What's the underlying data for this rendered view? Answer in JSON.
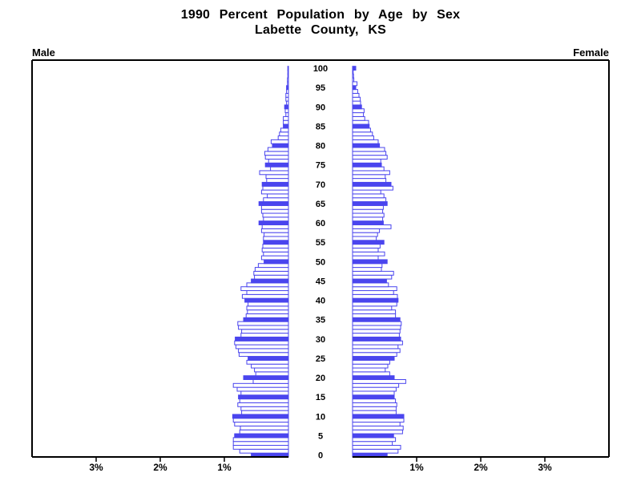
{
  "title": {
    "line1": "1990 Percent Population by Age by Sex",
    "line2": "Labette County, KS"
  },
  "panels": {
    "left_label": "Male",
    "right_label": "Female"
  },
  "chart_data": {
    "type": "bar",
    "subtype": "population-pyramid",
    "title": "1990 Percent Population by Age by Sex",
    "subtitle": "Labette County, KS",
    "orientation": "horizontal",
    "highlight_every": 5,
    "age_axis": {
      "min": 0,
      "max": 100,
      "tick_interval": 5,
      "tick_labels": [
        "0",
        "5",
        "10",
        "15",
        "20",
        "25",
        "30",
        "35",
        "40",
        "45",
        "50",
        "55",
        "60",
        "65",
        "70",
        "75",
        "80",
        "85",
        "90",
        "95",
        "100"
      ],
      "position": "center"
    },
    "x_axis": {
      "tick_labels": [
        "1%",
        "2%",
        "3%"
      ],
      "tick_values_percent": [
        1,
        2,
        3
      ],
      "max_percent": 4,
      "mirrored": true
    },
    "series": [
      {
        "name": "Male",
        "side": "left",
        "values_percent_by_age": [
          0.58,
          0.76,
          0.86,
          0.86,
          0.86,
          0.84,
          0.76,
          0.75,
          0.84,
          0.86,
          0.87,
          0.73,
          0.74,
          0.79,
          0.76,
          0.78,
          0.74,
          0.8,
          0.86,
          0.55,
          0.7,
          0.51,
          0.53,
          0.58,
          0.65,
          0.63,
          0.77,
          0.78,
          0.82,
          0.84,
          0.83,
          0.74,
          0.73,
          0.78,
          0.79,
          0.7,
          0.66,
          0.64,
          0.65,
          0.63,
          0.68,
          0.72,
          0.65,
          0.74,
          0.65,
          0.58,
          0.53,
          0.54,
          0.52,
          0.47,
          0.38,
          0.42,
          0.39,
          0.41,
          0.4,
          0.39,
          0.39,
          0.38,
          0.42,
          0.41,
          0.46,
          0.39,
          0.4,
          0.42,
          0.42,
          0.46,
          0.39,
          0.33,
          0.42,
          0.4,
          0.41,
          0.34,
          0.35,
          0.45,
          0.28,
          0.36,
          0.31,
          0.36,
          0.37,
          0.32,
          0.25,
          0.27,
          0.16,
          0.14,
          0.12,
          0.08,
          0.08,
          0.08,
          0.04,
          0.05,
          0.06,
          0.03,
          0.04,
          0.04,
          0.03,
          0.03,
          0.015,
          0.015,
          0.01,
          0.01,
          0.01
        ]
      },
      {
        "name": "Female",
        "side": "right",
        "values_percent_by_age": [
          0.54,
          0.71,
          0.75,
          0.62,
          0.67,
          0.64,
          0.78,
          0.79,
          0.74,
          0.8,
          0.8,
          0.68,
          0.68,
          0.69,
          0.67,
          0.65,
          0.65,
          0.68,
          0.72,
          0.83,
          0.65,
          0.58,
          0.51,
          0.55,
          0.58,
          0.65,
          0.69,
          0.74,
          0.71,
          0.78,
          0.75,
          0.73,
          0.74,
          0.75,
          0.76,
          0.74,
          0.67,
          0.67,
          0.61,
          0.69,
          0.71,
          0.7,
          0.64,
          0.69,
          0.56,
          0.53,
          0.61,
          0.64,
          0.45,
          0.46,
          0.54,
          0.4,
          0.5,
          0.4,
          0.43,
          0.49,
          0.37,
          0.39,
          0.42,
          0.6,
          0.48,
          0.47,
          0.49,
          0.47,
          0.48,
          0.54,
          0.52,
          0.49,
          0.44,
          0.63,
          0.6,
          0.52,
          0.51,
          0.58,
          0.49,
          0.45,
          0.44,
          0.54,
          0.52,
          0.5,
          0.42,
          0.4,
          0.33,
          0.31,
          0.28,
          0.26,
          0.25,
          0.19,
          0.17,
          0.18,
          0.14,
          0.125,
          0.12,
          0.1,
          0.08,
          0.05,
          0.07,
          0.02,
          0.015,
          0.01,
          0.05
        ]
      }
    ],
    "colors": {
      "bar_outline": "#4a45ee",
      "bar_highlight_fill": "#4a45ee",
      "bar_fill": "#ffffff",
      "frame": "#000000",
      "text": "#000000",
      "background": "#ffffff"
    }
  }
}
